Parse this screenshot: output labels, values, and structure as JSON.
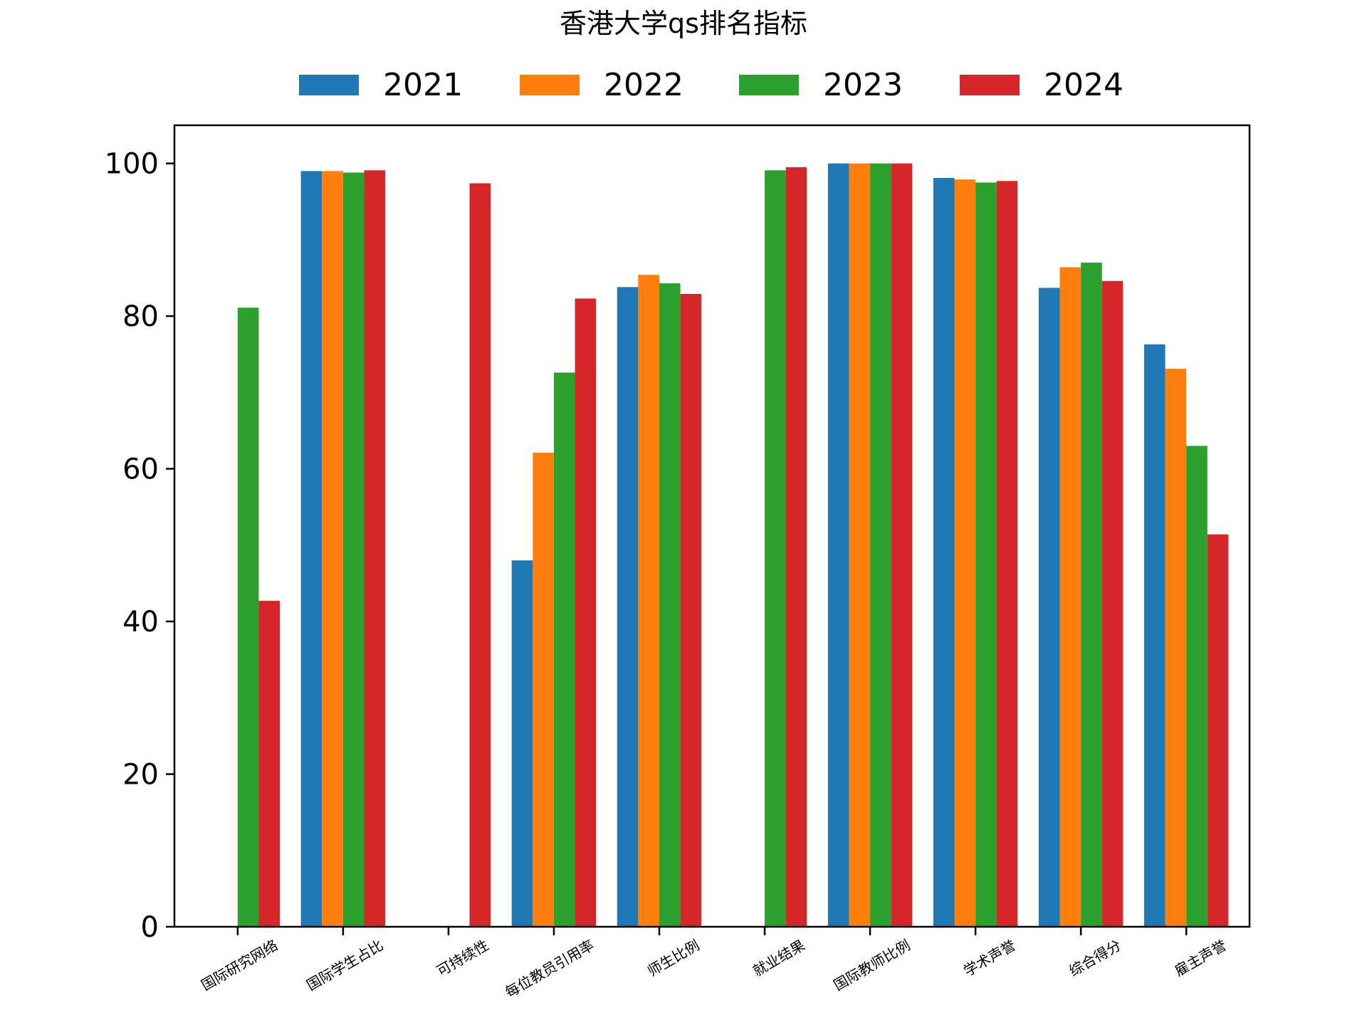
{
  "chart_data": {
    "type": "bar",
    "title": "香港大学qs排名指标",
    "xlabel": "",
    "ylabel": "",
    "ylim": [
      0,
      105
    ],
    "yticks": [
      0,
      20,
      40,
      60,
      80,
      100
    ],
    "legend_position": "top-center",
    "grid": false,
    "categories": [
      "国际研究网络",
      "国际学生占比",
      "可持续性",
      "每位教员引用率",
      "师生比例",
      "就业结果",
      "国际教师比例",
      "学术声誉",
      "综合得分",
      "雇主声誉"
    ],
    "series": [
      {
        "name": "2021",
        "color": "#1f77b4",
        "values": [
          null,
          99.0,
          null,
          48.0,
          83.8,
          null,
          100.0,
          98.1,
          83.7,
          76.3
        ]
      },
      {
        "name": "2022",
        "color": "#ff7f0e",
        "values": [
          null,
          99.0,
          null,
          62.1,
          85.4,
          null,
          100.0,
          97.9,
          86.4,
          73.1
        ]
      },
      {
        "name": "2023",
        "color": "#2ca02c",
        "values": [
          81.1,
          98.8,
          null,
          72.6,
          84.3,
          99.1,
          100.0,
          97.5,
          87.0,
          63.0
        ]
      },
      {
        "name": "2024",
        "color": "#d62728",
        "values": [
          42.7,
          99.1,
          97.4,
          82.3,
          82.9,
          99.5,
          100.0,
          97.7,
          84.6,
          51.4
        ]
      }
    ]
  }
}
